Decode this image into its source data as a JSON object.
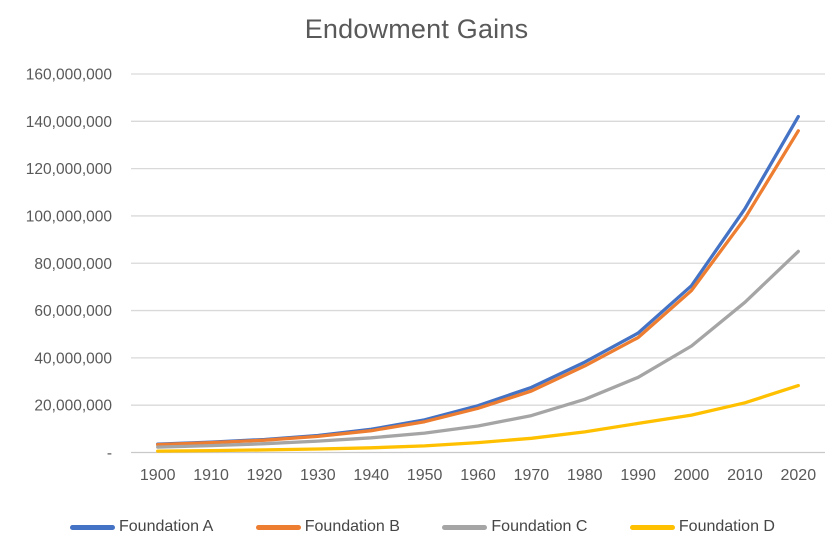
{
  "chart_data": {
    "type": "line",
    "title": "Endowment Gains",
    "xlabel": "",
    "ylabel": "",
    "x": [
      1900,
      1910,
      1920,
      1930,
      1940,
      1950,
      1960,
      1970,
      1980,
      1990,
      2000,
      2010,
      2020
    ],
    "x_tick_labels": [
      "1900",
      "1910",
      "1920",
      "1930",
      "1940",
      "1950",
      "1960",
      "1970",
      "1980",
      "1990",
      "2000",
      "2010",
      "2020"
    ],
    "ylim": [
      0,
      160000000
    ],
    "y_ticks": [
      0,
      20000000,
      40000000,
      60000000,
      80000000,
      100000000,
      120000000,
      140000000,
      160000000
    ],
    "y_tick_labels": [
      "-",
      "20,000,000",
      "40,000,000",
      "60,000,000",
      "80,000,000",
      "100,000,000",
      "120,000,000",
      "140,000,000",
      "160,000,000"
    ],
    "grid": "horizontal",
    "legend_position": "bottom",
    "series": [
      {
        "name": "Foundation A",
        "color": "#4472C4",
        "values": [
          3500000,
          4400000,
          5500000,
          7200000,
          9800000,
          13800000,
          19800000,
          27500000,
          38200000,
          50500000,
          70500000,
          103000000,
          142000000
        ]
      },
      {
        "name": "Foundation B",
        "color": "#ED7D31",
        "values": [
          3300000,
          4150000,
          5200000,
          6800000,
          9200000,
          13000000,
          18700000,
          26000000,
          36600000,
          48600000,
          68500000,
          99000000,
          136000000
        ]
      },
      {
        "name": "Foundation C",
        "color": "#A5A5A5",
        "values": [
          2300000,
          2900000,
          3700000,
          4800000,
          6200000,
          8200000,
          11200000,
          15600000,
          22500000,
          31800000,
          45000000,
          63500000,
          85000000
        ]
      },
      {
        "name": "Foundation D",
        "color": "#FFC000",
        "values": [
          600000,
          800000,
          1100000,
          1500000,
          2000000,
          2800000,
          4200000,
          6000000,
          8700000,
          12300000,
          15800000,
          21000000,
          28300000
        ]
      }
    ]
  },
  "colors": {
    "background": "#FFFFFF",
    "gridline": "#D9D9D9",
    "axis_line": "#C9C9C9",
    "axis_text": "#595959",
    "title_text": "#595959",
    "legend_text": "#464646"
  }
}
